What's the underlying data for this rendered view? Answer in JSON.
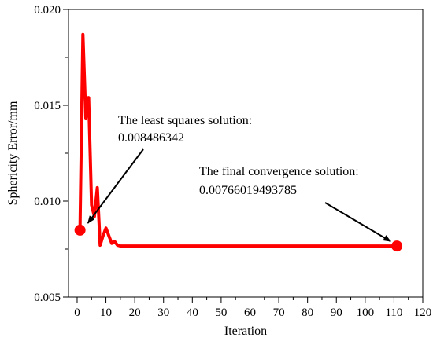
{
  "chart_data": {
    "type": "line",
    "xlabel": "Iteration",
    "ylabel": "Sphericity Error/mm",
    "xlim": [
      -3,
      120
    ],
    "ylim": [
      0.005,
      0.02
    ],
    "x_ticks": [
      "0",
      "10",
      "20",
      "30",
      "40",
      "50",
      "60",
      "70",
      "80",
      "90",
      "100",
      "110",
      "120"
    ],
    "y_ticks": [
      "0.005",
      "0.010",
      "0.015",
      "0.020"
    ],
    "grid": false,
    "series": [
      {
        "color": "#ff0000",
        "points": [
          [
            1,
            0.008486
          ],
          [
            2,
            0.0187
          ],
          [
            3,
            0.0143
          ],
          [
            4,
            0.0154
          ],
          [
            5,
            0.0098
          ],
          [
            6,
            0.0092
          ],
          [
            7,
            0.0107
          ],
          [
            8,
            0.0077
          ],
          [
            9,
            0.0082
          ],
          [
            10,
            0.0086
          ],
          [
            11,
            0.0082
          ],
          [
            12,
            0.0078
          ],
          [
            13,
            0.0079
          ],
          [
            14,
            0.0077
          ],
          [
            15,
            0.00766
          ],
          [
            111,
            0.00766
          ]
        ]
      }
    ],
    "markers": [
      {
        "x": 1,
        "y": 0.008486342
      },
      {
        "x": 111,
        "y": 0.00766019493785
      }
    ],
    "annotations": [
      {
        "line1": "The least squares solution:",
        "line2": "0.008486342",
        "target_x": 1,
        "target_y": 0.008486342
      },
      {
        "line1": "The final convergence solution:",
        "line2": "0.00766019493785",
        "target_x": 111,
        "target_y": 0.00766019493785
      }
    ]
  }
}
